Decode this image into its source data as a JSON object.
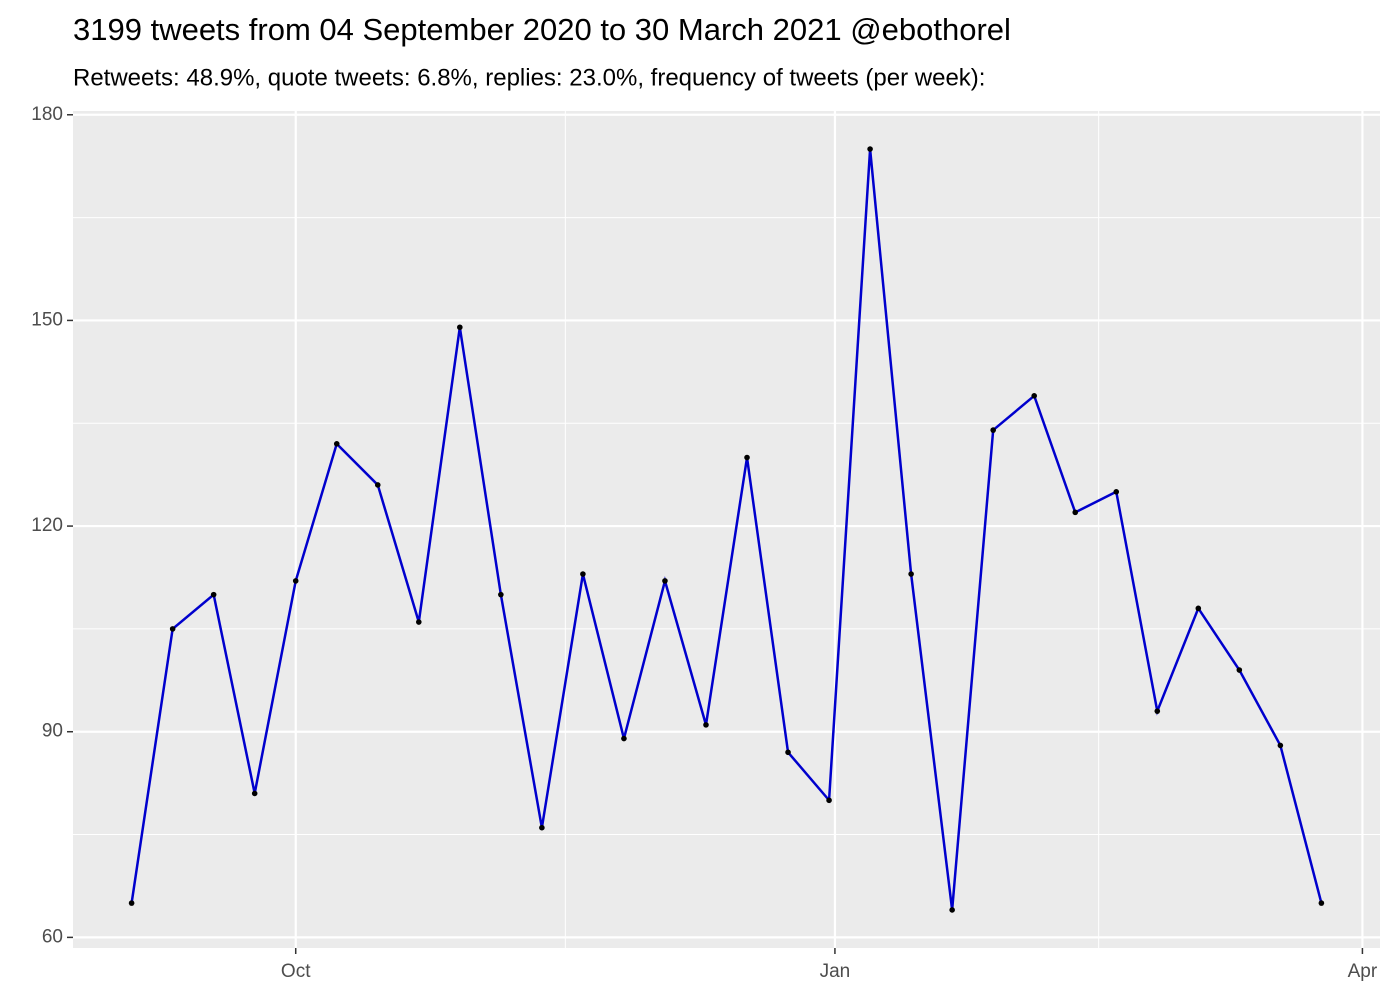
{
  "chart_data": {
    "type": "line",
    "title": "3199 tweets from 04 September 2020 to 30 March 2021 @ebothorel",
    "subtitle": "Retweets: 48.9%, quote tweets: 6.8%, replies: 23.0%, frequency of tweets (per week):",
    "x": [
      "2020-09-03",
      "2020-09-10",
      "2020-09-17",
      "2020-09-24",
      "2020-10-01",
      "2020-10-08",
      "2020-10-15",
      "2020-10-22",
      "2020-10-29",
      "2020-11-05",
      "2020-11-12",
      "2020-11-19",
      "2020-11-26",
      "2020-12-03",
      "2020-12-10",
      "2020-12-17",
      "2020-12-24",
      "2020-12-31",
      "2021-01-07",
      "2021-01-14",
      "2021-01-21",
      "2021-01-28",
      "2021-02-04",
      "2021-02-11",
      "2021-02-18",
      "2021-02-25",
      "2021-03-04",
      "2021-03-11",
      "2021-03-18",
      "2021-03-25"
    ],
    "series": [
      {
        "color": "#0000cd",
        "point_color": "#000000",
        "values": [
          65,
          105,
          110,
          81,
          112,
          132,
          126,
          106,
          149,
          110,
          76,
          113,
          89,
          112,
          91,
          130,
          87,
          80,
          175,
          113,
          64,
          134,
          139,
          122,
          125,
          93,
          108,
          99,
          88,
          65
        ]
      }
    ],
    "xlim": [
      "2020-08-24",
      "2021-04-04"
    ],
    "xticks": [
      {
        "value": "2020-10-01",
        "label": "Oct"
      },
      {
        "value": "2021-01-01",
        "label": "Jan"
      },
      {
        "value": "2021-04-01",
        "label": "Apr"
      }
    ],
    "x_minor_ticks": [
      "2020-11-16",
      "2021-02-15"
    ],
    "ylim": [
      58.45,
      180.55
    ],
    "yticks": [
      60,
      90,
      120,
      150,
      180
    ],
    "y_minor_ticks": [
      75,
      105,
      135,
      165
    ],
    "grid": true
  }
}
